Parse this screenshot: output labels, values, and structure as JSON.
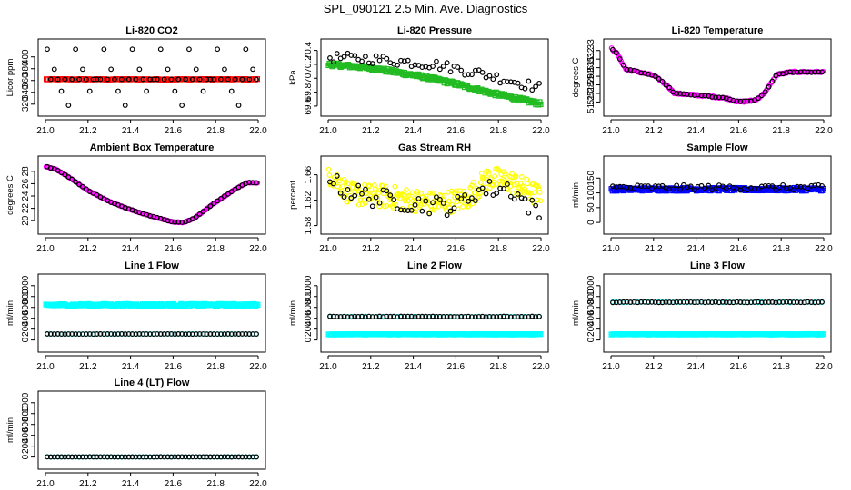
{
  "figure": {
    "title": "SPL_090121  2.5 Min. Ave. Diagnostics"
  },
  "chart_data": [
    {
      "id": "co2",
      "type": "scatter",
      "title": "Li-820 CO2",
      "ylabel": "Licor ppm",
      "xlim": [
        21.0,
        22.0
      ],
      "xticks": [
        21.0,
        21.2,
        21.4,
        21.6,
        21.8,
        22.0
      ],
      "ylim": [
        312,
        418
      ],
      "yticks": [
        320,
        340,
        360,
        380,
        400
      ],
      "series": [
        {
          "color": "#ff0000",
          "marker": "square",
          "gen": {
            "kind": "flat",
            "n": 110,
            "base": 362,
            "amp": 0.6
          }
        },
        {
          "color": "#000000",
          "marker": "circle",
          "gen": {
            "kind": "spiky",
            "n": 60,
            "base": 362,
            "levels": [
              413,
              379,
              342,
              318,
              413,
              379,
              342,
              362
            ]
          }
        }
      ]
    },
    {
      "id": "pressure",
      "type": "scatter",
      "title": "Li-820 Pressure",
      "ylabel": "kPa",
      "xlim": [
        21.0,
        22.0
      ],
      "xticks": [
        21.0,
        21.2,
        21.4,
        21.6,
        21.8,
        22.0
      ],
      "ylim": [
        69.56,
        70.46
      ],
      "yticks": [
        69.6,
        69.8,
        70.0,
        70.2,
        70.4
      ],
      "series": [
        {
          "color": "#22bb22",
          "marker": "square",
          "gen": {
            "kind": "trend",
            "n": 230,
            "pts": [
              [
                21.0,
                70.2
              ],
              [
                21.2,
                70.15
              ],
              [
                21.45,
                70.02
              ],
              [
                21.6,
                69.92
              ],
              [
                21.75,
                69.8
              ],
              [
                22.0,
                69.63
              ]
            ],
            "noise": 0.025
          }
        },
        {
          "color": "#000000",
          "marker": "circle",
          "gen": {
            "kind": "trend",
            "n": 60,
            "pts": [
              [
                21.0,
                70.3
              ],
              [
                21.2,
                70.28
              ],
              [
                21.5,
                70.2
              ],
              [
                21.7,
                70.08
              ],
              [
                22.0,
                69.86
              ]
            ],
            "noise": 0.07
          }
        }
      ]
    },
    {
      "id": "licortemp",
      "type": "scatter",
      "title": "Li-820 Temperature",
      "ylabel": "degrees C",
      "xlim": [
        21.0,
        22.0
      ],
      "xticks": [
        21.0,
        21.2,
        21.4,
        21.6,
        21.8,
        22.0
      ],
      "ylim": [
        51.262,
        51.335
      ],
      "yticks": [
        51.27,
        51.28,
        51.29,
        51.3,
        51.31,
        51.32,
        51.33
      ],
      "series": [
        {
          "color": "#ff00ff",
          "marker": "circle",
          "gen": {
            "kind": "trend",
            "n": 180,
            "pts": [
              [
                21.0,
                51.333
              ],
              [
                21.03,
                51.326
              ],
              [
                21.07,
                51.308
              ],
              [
                21.13,
                51.305
              ],
              [
                21.2,
                51.301
              ],
              [
                21.26,
                51.29
              ],
              [
                21.3,
                51.28
              ],
              [
                21.45,
                51.277
              ],
              [
                21.55,
                51.274
              ],
              [
                21.6,
                51.27
              ],
              [
                21.68,
                51.272
              ],
              [
                21.72,
                51.28
              ],
              [
                21.78,
                51.302
              ],
              [
                21.85,
                51.305
              ],
              [
                22.0,
                51.305
              ]
            ],
            "noise": 0.0009
          }
        },
        {
          "color": "#000000",
          "marker": "circle",
          "gen": {
            "kind": "trend",
            "n": 60,
            "pts": [
              [
                21.0,
                51.333
              ],
              [
                21.03,
                51.326
              ],
              [
                21.07,
                51.308
              ],
              [
                21.13,
                51.305
              ],
              [
                21.2,
                51.301
              ],
              [
                21.26,
                51.29
              ],
              [
                21.3,
                51.28
              ],
              [
                21.45,
                51.277
              ],
              [
                21.55,
                51.274
              ],
              [
                21.6,
                51.27
              ],
              [
                21.68,
                51.272
              ],
              [
                21.72,
                51.28
              ],
              [
                21.78,
                51.302
              ],
              [
                21.85,
                51.305
              ],
              [
                22.0,
                51.305
              ]
            ],
            "noise": 0.0006
          }
        }
      ]
    },
    {
      "id": "boxtemp",
      "type": "scatter",
      "title": "Ambient Box Temperature",
      "ylabel": "degrees C",
      "xlim": [
        21.0,
        22.0
      ],
      "xticks": [
        21.0,
        21.2,
        21.4,
        21.6,
        21.8,
        22.0
      ],
      "ylim": [
        19.0,
        29.3
      ],
      "yticks": [
        20,
        22,
        24,
        26,
        28
      ],
      "series": [
        {
          "color": "#ff00ff",
          "marker": "circle",
          "gen": {
            "kind": "trend",
            "n": 170,
            "pts": [
              [
                21.0,
                28.8
              ],
              [
                21.05,
                28.3
              ],
              [
                21.1,
                27.3
              ],
              [
                21.2,
                24.9
              ],
              [
                21.3,
                23.1
              ],
              [
                21.4,
                21.8
              ],
              [
                21.5,
                20.7
              ],
              [
                21.6,
                19.8
              ],
              [
                21.65,
                19.7
              ],
              [
                21.7,
                20.4
              ],
              [
                21.8,
                23.0
              ],
              [
                21.9,
                25.3
              ],
              [
                21.95,
                26.2
              ],
              [
                22.0,
                26.1
              ]
            ],
            "noise": 0.05
          }
        },
        {
          "color": "#000000",
          "marker": "circle",
          "gen": {
            "kind": "trend",
            "n": 60,
            "pts": [
              [
                21.0,
                28.8
              ],
              [
                21.05,
                28.3
              ],
              [
                21.1,
                27.3
              ],
              [
                21.2,
                24.9
              ],
              [
                21.3,
                23.1
              ],
              [
                21.4,
                21.8
              ],
              [
                21.5,
                20.7
              ],
              [
                21.6,
                19.8
              ],
              [
                21.65,
                19.7
              ],
              [
                21.7,
                20.4
              ],
              [
                21.8,
                23.0
              ],
              [
                21.9,
                25.3
              ],
              [
                21.95,
                26.2
              ],
              [
                22.0,
                26.1
              ]
            ],
            "noise": 0.04
          }
        }
      ]
    },
    {
      "id": "rh",
      "type": "scatter",
      "title": "Gas Stream RH",
      "ylabel": "percent",
      "xlim": [
        21.0,
        22.0
      ],
      "xticks": [
        21.0,
        21.2,
        21.4,
        21.6,
        21.8,
        22.0
      ],
      "ylim": [
        1.578,
        1.678
      ],
      "yticks": [
        1.58,
        1.62,
        1.66
      ],
      "series": [
        {
          "color": "#ffff00",
          "marker": "circle",
          "gen": {
            "kind": "trend",
            "n": 260,
            "pts": [
              [
                21.0,
                1.665
              ],
              [
                21.1,
                1.63
              ],
              [
                21.3,
                1.625
              ],
              [
                21.5,
                1.615
              ],
              [
                21.65,
                1.622
              ],
              [
                21.75,
                1.655
              ],
              [
                21.85,
                1.65
              ],
              [
                22.0,
                1.625
              ]
            ],
            "noise": 0.018
          }
        },
        {
          "color": "#000000",
          "marker": "circle",
          "gen": {
            "kind": "trend",
            "n": 60,
            "pts": [
              [
                21.0,
                1.665
              ],
              [
                21.05,
                1.64
              ],
              [
                21.2,
                1.625
              ],
              [
                21.4,
                1.615
              ],
              [
                21.6,
                1.61
              ],
              [
                21.7,
                1.635
              ],
              [
                21.85,
                1.64
              ],
              [
                22.0,
                1.595
              ]
            ],
            "noise": 0.015
          }
        }
      ]
    },
    {
      "id": "sampleflow",
      "type": "scatter",
      "title": "Sample Flow",
      "ylabel": "ml/min",
      "xlim": [
        21.0,
        22.0
      ],
      "xticks": [
        21.0,
        21.2,
        21.4,
        21.6,
        21.8,
        22.0
      ],
      "ylim": [
        -15,
        200
      ],
      "yticks": [
        0,
        50,
        100,
        150
      ],
      "series": [
        {
          "color": "#0000ff",
          "marker": "square",
          "gen": {
            "kind": "flat",
            "n": 200,
            "base": 112,
            "amp": 5
          }
        },
        {
          "color": "#000000",
          "marker": "circle",
          "gen": {
            "kind": "flat",
            "n": 60,
            "base": 118,
            "amp": 9
          }
        }
      ]
    },
    {
      "id": "line1",
      "type": "scatter",
      "title": "Line 1 Flow",
      "ylabel": "ml/min",
      "xlim": [
        21.0,
        22.0
      ],
      "xticks": [
        21.0,
        21.2,
        21.4,
        21.6,
        21.8,
        22.0
      ],
      "ylim": [
        -90,
        1080
      ],
      "yticks": [
        0,
        200,
        400,
        600,
        800,
        1000
      ],
      "series": [
        {
          "color": "#00ffff",
          "marker": "square",
          "gen": {
            "kind": "flat",
            "n": 200,
            "base": 645,
            "amp": 20
          }
        },
        {
          "color": "#00ffff",
          "marker": "circle",
          "gen": {
            "kind": "flat",
            "n": 60,
            "base": 110,
            "amp": 2
          }
        },
        {
          "color": "#000000",
          "marker": "circle",
          "gen": {
            "kind": "flat",
            "n": 60,
            "base": 110,
            "amp": 2
          }
        }
      ]
    },
    {
      "id": "line2",
      "type": "scatter",
      "title": "Line 2 Flow",
      "ylabel": "ml/min",
      "xlim": [
        21.0,
        22.0
      ],
      "xticks": [
        21.0,
        21.2,
        21.4,
        21.6,
        21.8,
        22.0
      ],
      "ylim": [
        -90,
        1080
      ],
      "yticks": [
        0,
        200,
        400,
        600,
        800,
        1000
      ],
      "series": [
        {
          "color": "#00ffff",
          "marker": "square",
          "gen": {
            "kind": "flat",
            "n": 200,
            "base": 105,
            "amp": 5
          }
        },
        {
          "color": "#00ffff",
          "marker": "circle",
          "gen": {
            "kind": "flat",
            "n": 60,
            "base": 430,
            "amp": 6
          }
        },
        {
          "color": "#000000",
          "marker": "circle",
          "gen": {
            "kind": "flat",
            "n": 60,
            "base": 430,
            "amp": 6
          }
        }
      ]
    },
    {
      "id": "line3",
      "type": "scatter",
      "title": "Line 3 Flow",
      "ylabel": "ml/min",
      "xlim": [
        21.0,
        22.0
      ],
      "xticks": [
        21.0,
        21.2,
        21.4,
        21.6,
        21.8,
        22.0
      ],
      "ylim": [
        -90,
        1080
      ],
      "yticks": [
        0,
        200,
        400,
        600,
        800,
        1000
      ],
      "series": [
        {
          "color": "#00ffff",
          "marker": "square",
          "gen": {
            "kind": "flat",
            "n": 200,
            "base": 105,
            "amp": 5
          }
        },
        {
          "color": "#00ffff",
          "marker": "circle",
          "gen": {
            "kind": "flat",
            "n": 60,
            "base": 695,
            "amp": 6
          }
        },
        {
          "color": "#000000",
          "marker": "circle",
          "gen": {
            "kind": "flat",
            "n": 60,
            "base": 695,
            "amp": 6
          }
        }
      ]
    },
    {
      "id": "line4",
      "type": "scatter",
      "title": "Line 4 (LT) Flow",
      "ylabel": "ml/min",
      "xlim": [
        21.0,
        22.0
      ],
      "xticks": [
        21.0,
        21.2,
        21.4,
        21.6,
        21.8,
        22.0
      ],
      "ylim": [
        -90,
        1080
      ],
      "yticks": [
        0,
        200,
        400,
        600,
        800,
        1000
      ],
      "series": [
        {
          "color": "#00ffff",
          "marker": "circle",
          "gen": {
            "kind": "flat",
            "n": 60,
            "base": 3,
            "amp": 2
          }
        },
        {
          "color": "#000000",
          "marker": "circle",
          "gen": {
            "kind": "flat",
            "n": 60,
            "base": 3,
            "amp": 2
          }
        }
      ]
    }
  ]
}
